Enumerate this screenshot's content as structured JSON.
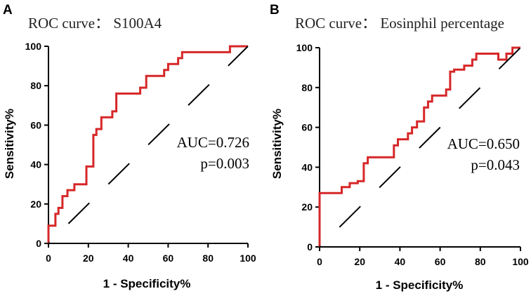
{
  "chart_data": [
    {
      "type": "line",
      "panel_label": "A",
      "title": "ROC curve： S100A4",
      "xlabel": "1 - Specificity%",
      "ylabel": "Sensitivity%",
      "xlim": [
        0,
        100
      ],
      "ylim": [
        0,
        100
      ],
      "xticks": [
        "0",
        "20",
        "40",
        "60",
        "80",
        "100"
      ],
      "yticks": [
        "0",
        "20",
        "40",
        "60",
        "80",
        "100"
      ],
      "annotations": [
        "AUC=0.726",
        "p=0.003"
      ],
      "series": [
        {
          "name": "ROC",
          "color": "#d62728",
          "x": [
            0,
            0,
            3.5,
            3.5,
            5,
            5,
            7,
            7,
            9.5,
            9.5,
            13,
            13,
            19,
            19,
            22.5,
            22.5,
            24,
            24,
            26.5,
            26.5,
            32,
            32,
            34,
            34,
            46,
            46,
            49,
            49,
            58,
            58,
            60,
            60,
            65,
            65,
            67,
            67,
            91,
            91,
            100,
            100
          ],
          "y": [
            0,
            9,
            9,
            15,
            15,
            18,
            18,
            24,
            24,
            27,
            27,
            30,
            30,
            39,
            39,
            55,
            55,
            58,
            58,
            64,
            64,
            67,
            67,
            76,
            76,
            79,
            79,
            85,
            85,
            88,
            88,
            91,
            91,
            94,
            94,
            97,
            97,
            100,
            100,
            100
          ]
        },
        {
          "name": "Reference",
          "color": "#000000",
          "dashed": true,
          "x": [
            0,
            100
          ],
          "y": [
            0,
            100
          ]
        }
      ]
    },
    {
      "type": "line",
      "panel_label": "B",
      "title": "ROC curve： Eosinphil percentage",
      "xlabel": "1 - Specificity%",
      "ylabel": "Sensitivity%",
      "xlim": [
        0,
        100
      ],
      "ylim": [
        0,
        100
      ],
      "xticks": [
        "0",
        "20",
        "40",
        "60",
        "80",
        "100"
      ],
      "yticks": [
        "0",
        "20",
        "40",
        "60",
        "80",
        "100"
      ],
      "annotations": [
        "AUC=0.650",
        "p=0.043"
      ],
      "series": [
        {
          "name": "ROC",
          "color": "#d62728",
          "x": [
            0,
            0,
            11,
            11,
            15,
            15,
            19,
            19,
            22,
            22,
            24,
            24,
            37,
            37,
            39,
            39,
            44,
            44,
            46,
            46,
            48.5,
            48.5,
            52,
            52,
            54,
            54,
            56,
            56,
            63,
            63,
            65,
            65,
            67,
            67,
            72,
            72,
            76,
            76,
            78,
            78,
            89,
            89,
            93,
            93,
            96,
            96,
            100
          ],
          "y": [
            0,
            27,
            27,
            30,
            30,
            32,
            32,
            33,
            33,
            42,
            42,
            45,
            45,
            51,
            51,
            54,
            54,
            57,
            57,
            60,
            60,
            63,
            63,
            70,
            70,
            73,
            73,
            76,
            76,
            79,
            79,
            88,
            88,
            89,
            89,
            91,
            91,
            94,
            94,
            97,
            97,
            94,
            94,
            97,
            97,
            100,
            100
          ]
        },
        {
          "name": "Reference",
          "color": "#000000",
          "dashed": true,
          "x": [
            0,
            100
          ],
          "y": [
            0,
            100
          ]
        }
      ]
    }
  ]
}
